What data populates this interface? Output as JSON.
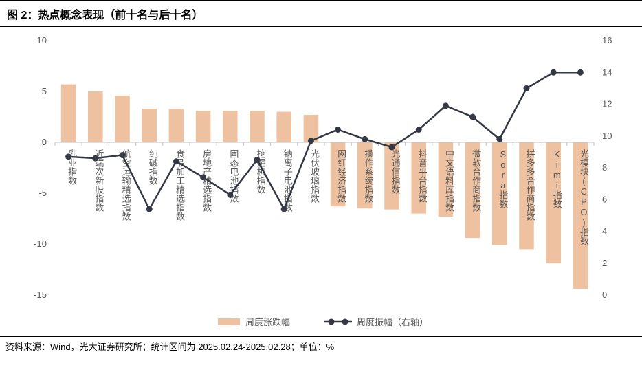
{
  "title": "图 2：热点概念表现（前十名与后十名）",
  "source": "资料来源：Wind，光大证券研究所；统计区间为 2025.02.24-2025.02.28；单位：%",
  "chart": {
    "type": "bar+line",
    "categories": [
      "乳业指数",
      "近端次新股指数",
      "航空运输精选指数",
      "纯碱指数",
      "食品加工精选指数",
      "房地产精选指数",
      "固态电池指数",
      "挖掘机指数",
      "钠离子电池指数",
      "光伏玻璃指数",
      "网红经济指数",
      "操作系统指数",
      "光通信指数",
      "抖音平台指数",
      "中文语料库指数",
      "微软合作商指数",
      "Sora指数",
      "拼多多合作商指数",
      "Kimi指数",
      "光模块(CPO)指数"
    ],
    "bar_values": [
      5.7,
      5.0,
      4.6,
      3.3,
      3.3,
      3.1,
      3.1,
      3.1,
      3.0,
      2.7,
      -6.3,
      -6.5,
      -6.6,
      -7.0,
      -7.3,
      -9.4,
      -10.1,
      -10.5,
      -11.9,
      -14.4
    ],
    "line_values": [
      8.7,
      8.6,
      8.8,
      5.4,
      8.4,
      7.4,
      6.3,
      8.5,
      5.4,
      9.7,
      10.4,
      9.8,
      9.3,
      10.4,
      11.9,
      11.2,
      9.8,
      13.0,
      14.0,
      14.0
    ],
    "y_left": {
      "min": -15,
      "max": 10,
      "step": 5
    },
    "y_right": {
      "min": 0,
      "max": 16,
      "step": 2
    },
    "colors": {
      "bar": "#eec2a1",
      "line": "#333844",
      "marker": "#333844",
      "axis_text": "#595959",
      "axis_line": "#bfbfbf",
      "background": "#ffffff"
    },
    "bar_width_ratio": 0.55,
    "line_width": 2.5,
    "marker_radius": 4.5,
    "legend": {
      "bar_label": "周度涨跌幅",
      "line_label": "周度振幅（右轴）"
    },
    "title_fontsize": 15,
    "axis_fontsize": 13,
    "legend_fontsize": 13
  }
}
